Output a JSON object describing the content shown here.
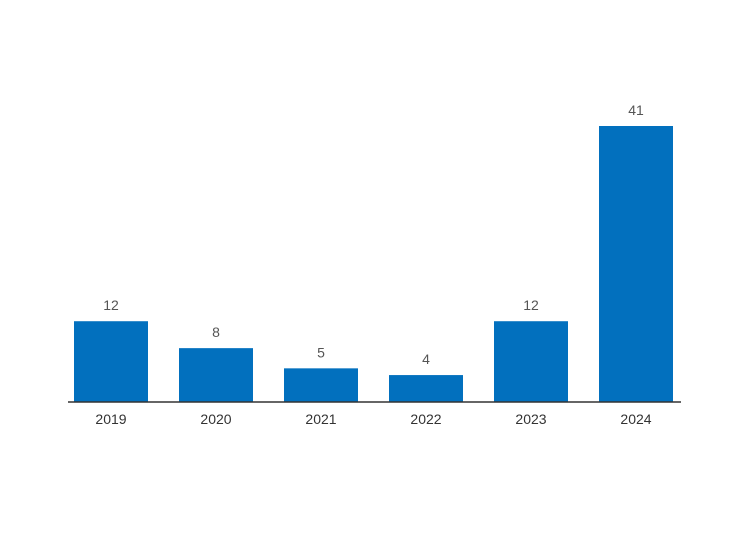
{
  "chart_data": {
    "type": "bar",
    "categories": [
      "2019",
      "2020",
      "2021",
      "2022",
      "2023",
      "2024"
    ],
    "values": [
      12,
      8,
      5,
      4,
      12,
      41
    ],
    "title": "",
    "xlabel": "",
    "ylabel": "",
    "ylim": [
      0,
      41
    ],
    "grid": false,
    "legend": "none",
    "data_labels": true,
    "colors": {
      "bar": "#0270BE",
      "value_label": "#555555",
      "tick_label": "#333333",
      "axis": "#333333"
    }
  }
}
